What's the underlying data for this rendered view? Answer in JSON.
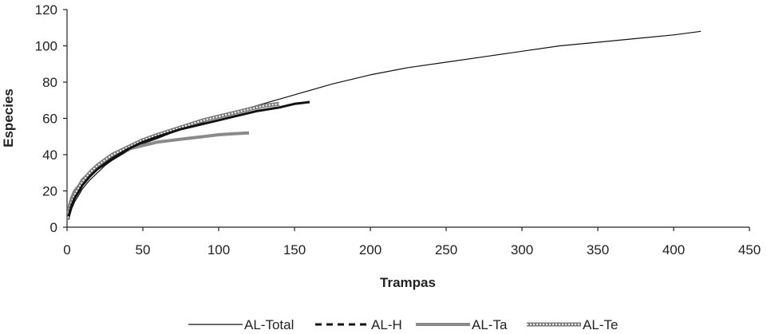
{
  "chart_data": {
    "type": "line",
    "title": "",
    "xlabel": "Trampas",
    "ylabel": "Especies",
    "xlim": [
      0,
      450
    ],
    "ylim": [
      0,
      120
    ],
    "x_ticks": [
      0,
      50,
      100,
      150,
      200,
      250,
      300,
      350,
      400,
      450
    ],
    "y_ticks": [
      0,
      20,
      40,
      60,
      80,
      100,
      120
    ],
    "grid": false,
    "legend_position": "bottom",
    "colors": {
      "AL-Total": "#111111",
      "AL-H": "#111111",
      "AL-Ta": "#8a8a8a",
      "AL-Te": "#7a7a7a"
    },
    "series": [
      {
        "name": "AL-Total",
        "style": "thin-solid",
        "x": [
          1,
          2,
          3,
          5,
          8,
          10,
          15,
          20,
          25,
          30,
          40,
          50,
          60,
          75,
          90,
          100,
          125,
          150,
          175,
          200,
          225,
          250,
          275,
          300,
          325,
          350,
          375,
          400,
          418
        ],
        "y": [
          4,
          7,
          10,
          14,
          18,
          21,
          26,
          30,
          34,
          37,
          42,
          46,
          49,
          54,
          58,
          61,
          67,
          73,
          79,
          84,
          88,
          91,
          94,
          97,
          100,
          102,
          104,
          106,
          108
        ]
      },
      {
        "name": "AL-H",
        "style": "thick-dashed",
        "x": [
          1,
          2,
          3,
          5,
          8,
          10,
          15,
          20,
          25,
          30,
          40,
          50,
          60,
          75,
          90,
          100,
          110,
          125,
          140,
          150,
          160
        ],
        "y": [
          6,
          9,
          12,
          16,
          20,
          23,
          28,
          32,
          35,
          38,
          43,
          47,
          50,
          54,
          57,
          59,
          61,
          64,
          66,
          68,
          69
        ]
      },
      {
        "name": "AL-Ta",
        "style": "thick-gray",
        "x": [
          1,
          2,
          3,
          5,
          8,
          10,
          15,
          20,
          25,
          30,
          40,
          50,
          60,
          70,
          80,
          90,
          100,
          110,
          120
        ],
        "y": [
          10,
          13,
          16,
          20,
          23,
          26,
          30,
          34,
          37,
          39,
          43,
          45,
          47,
          48,
          49,
          50,
          51,
          51.5,
          52
        ]
      },
      {
        "name": "AL-Te",
        "style": "beaded",
        "x": [
          1,
          2,
          3,
          5,
          8,
          10,
          15,
          20,
          25,
          30,
          40,
          50,
          60,
          75,
          90,
          100,
          110,
          120,
          130,
          140
        ],
        "y": [
          8,
          11,
          14,
          18,
          22,
          25,
          30,
          34,
          37,
          40,
          44,
          48,
          51,
          55,
          59,
          61,
          63,
          65,
          67,
          68
        ]
      }
    ]
  }
}
